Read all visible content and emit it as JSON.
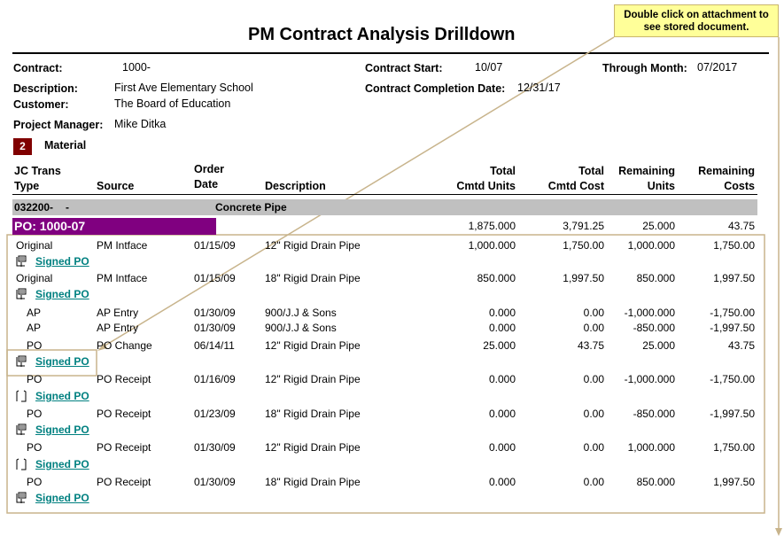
{
  "report_title": "PM Contract Analysis Drilldown",
  "callout": {
    "line1": "Double click on attachment to",
    "line2": "see stored document."
  },
  "header": {
    "contract_label": "Contract:",
    "contract_value": "1000-",
    "description_label": "Description:",
    "description_value": "First Ave Elementary School",
    "customer_label": "Customer:",
    "customer_value": "The Board of Education",
    "pm_label": "Project Manager:",
    "pm_value": "Mike Ditka",
    "start_label": "Contract Start:",
    "start_value": "10/07",
    "completion_label": "Contract Completion Date:",
    "completion_value": "12/31/17",
    "through_label": "Through Month:",
    "through_value": "07/2017"
  },
  "category": {
    "badge": "2",
    "label": "Material"
  },
  "columns": {
    "jc_trans_1": "JC Trans",
    "jc_trans_2": "Type",
    "source": "Source",
    "order_1": "Order",
    "order_2": "Date",
    "description": "Description",
    "cmtd_units_1": "Total",
    "cmtd_units_2": "Cmtd Units",
    "cmtd_cost_1": "Total",
    "cmtd_cost_2": "Cmtd Cost",
    "rem_units_1": "Remaining",
    "rem_units_2": "Units",
    "rem_costs_1": "Remaining",
    "rem_costs_2": "Costs"
  },
  "phase": {
    "code": "032200-",
    "dash": "-",
    "name": "Concrete Pipe"
  },
  "po": {
    "label": "PO: 1000-07",
    "cmtd_units": "1,875.000",
    "cmtd_cost": "3,791.25",
    "rem_units": "25.000",
    "rem_costs": "43.75"
  },
  "rows": [
    {
      "type": "Original",
      "source": "PM Intface",
      "date": "01/15/09",
      "desc": "12\" Rigid Drain Pipe",
      "units": "1,000.000",
      "cost": "1,750.00",
      "rem_units": "1,000.000",
      "rem_costs": "1,750.00"
    },
    {
      "type": "Original",
      "source": "PM Intface",
      "date": "01/15/09",
      "desc": "18\" Rigid Drain Pipe",
      "units": "850.000",
      "cost": "1,997.50",
      "rem_units": "850.000",
      "rem_costs": "1,997.50"
    },
    {
      "type": "AP",
      "source": "AP Entry",
      "date": "01/30/09",
      "desc": "900/J.J & Sons",
      "units": "0.000",
      "cost": "0.00",
      "rem_units": "-1,000.000",
      "rem_costs": "-1,750.00"
    },
    {
      "type": "AP",
      "source": "AP Entry",
      "date": "01/30/09",
      "desc": "900/J.J & Sons",
      "units": "0.000",
      "cost": "0.00",
      "rem_units": "-850.000",
      "rem_costs": "-1,997.50"
    },
    {
      "type": "PO",
      "source": "PO Change",
      "date": "06/14/11",
      "desc": "12\" Rigid Drain Pipe",
      "units": "25.000",
      "cost": "43.75",
      "rem_units": "25.000",
      "rem_costs": "43.75"
    },
    {
      "type": "PO",
      "source": "PO Receipt",
      "date": "01/16/09",
      "desc": "12\" Rigid Drain Pipe",
      "units": "0.000",
      "cost": "0.00",
      "rem_units": "-1,000.000",
      "rem_costs": "-1,750.00"
    },
    {
      "type": "PO",
      "source": "PO Receipt",
      "date": "01/23/09",
      "desc": "18\" Rigid Drain Pipe",
      "units": "0.000",
      "cost": "0.00",
      "rem_units": "-850.000",
      "rem_costs": "-1,997.50"
    },
    {
      "type": "PO",
      "source": "PO Receipt",
      "date": "01/30/09",
      "desc": "12\" Rigid Drain Pipe",
      "units": "0.000",
      "cost": "0.00",
      "rem_units": "1,000.000",
      "rem_costs": "1,750.00"
    },
    {
      "type": "PO",
      "source": "PO Receipt",
      "date": "01/30/09",
      "desc": "18\" Rigid Drain Pipe",
      "units": "0.000",
      "cost": "0.00",
      "rem_units": "850.000",
      "rem_costs": "1,997.50"
    }
  ],
  "attachment_label": "Signed PO",
  "colors": {
    "po_bar": "#800080",
    "phase_bar": "#c0c0c0",
    "badge": "#800000",
    "link": "#008080",
    "annotation": "#c8b48c",
    "callout_bg": "#ffff99"
  },
  "icons": {
    "attachment": "paperclip-document-icon",
    "arrow": "arrow-down-icon"
  }
}
